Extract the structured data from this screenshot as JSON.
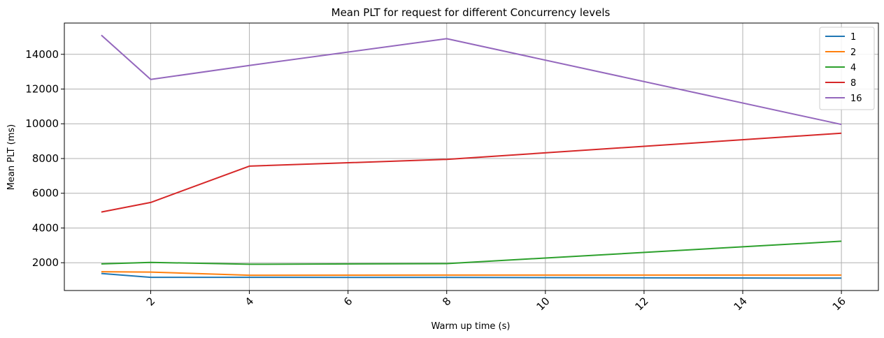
{
  "chart_data": {
    "type": "line",
    "title": "Mean PLT for request for different Concurrency levels",
    "xlabel": "Warm up time (s)",
    "ylabel": "Mean PLT (ms)",
    "x": [
      1,
      2,
      4,
      8,
      16
    ],
    "xlim": [
      0.25,
      16.75
    ],
    "ylim": [
      400,
      15800
    ],
    "xticks": [
      2,
      4,
      6,
      8,
      10,
      12,
      14,
      16
    ],
    "yticks": [
      2000,
      4000,
      6000,
      8000,
      10000,
      12000,
      14000
    ],
    "xtick_rotation": 45,
    "grid": true,
    "legend_position": "top-right",
    "series": [
      {
        "name": "1",
        "color": "#1f77b4",
        "values": [
          1380,
          1160,
          1160,
          1150,
          1110
        ]
      },
      {
        "name": "2",
        "color": "#ff7f0e",
        "values": [
          1480,
          1460,
          1280,
          1290,
          1290
        ]
      },
      {
        "name": "4",
        "color": "#2ca02c",
        "values": [
          1930,
          2020,
          1910,
          1950,
          3240
        ]
      },
      {
        "name": "8",
        "color": "#d62728",
        "values": [
          4920,
          5470,
          7560,
          7950,
          9460
        ]
      },
      {
        "name": "16",
        "color": "#9467bd",
        "values": [
          15100,
          12550,
          13360,
          14900,
          9960
        ]
      }
    ]
  }
}
